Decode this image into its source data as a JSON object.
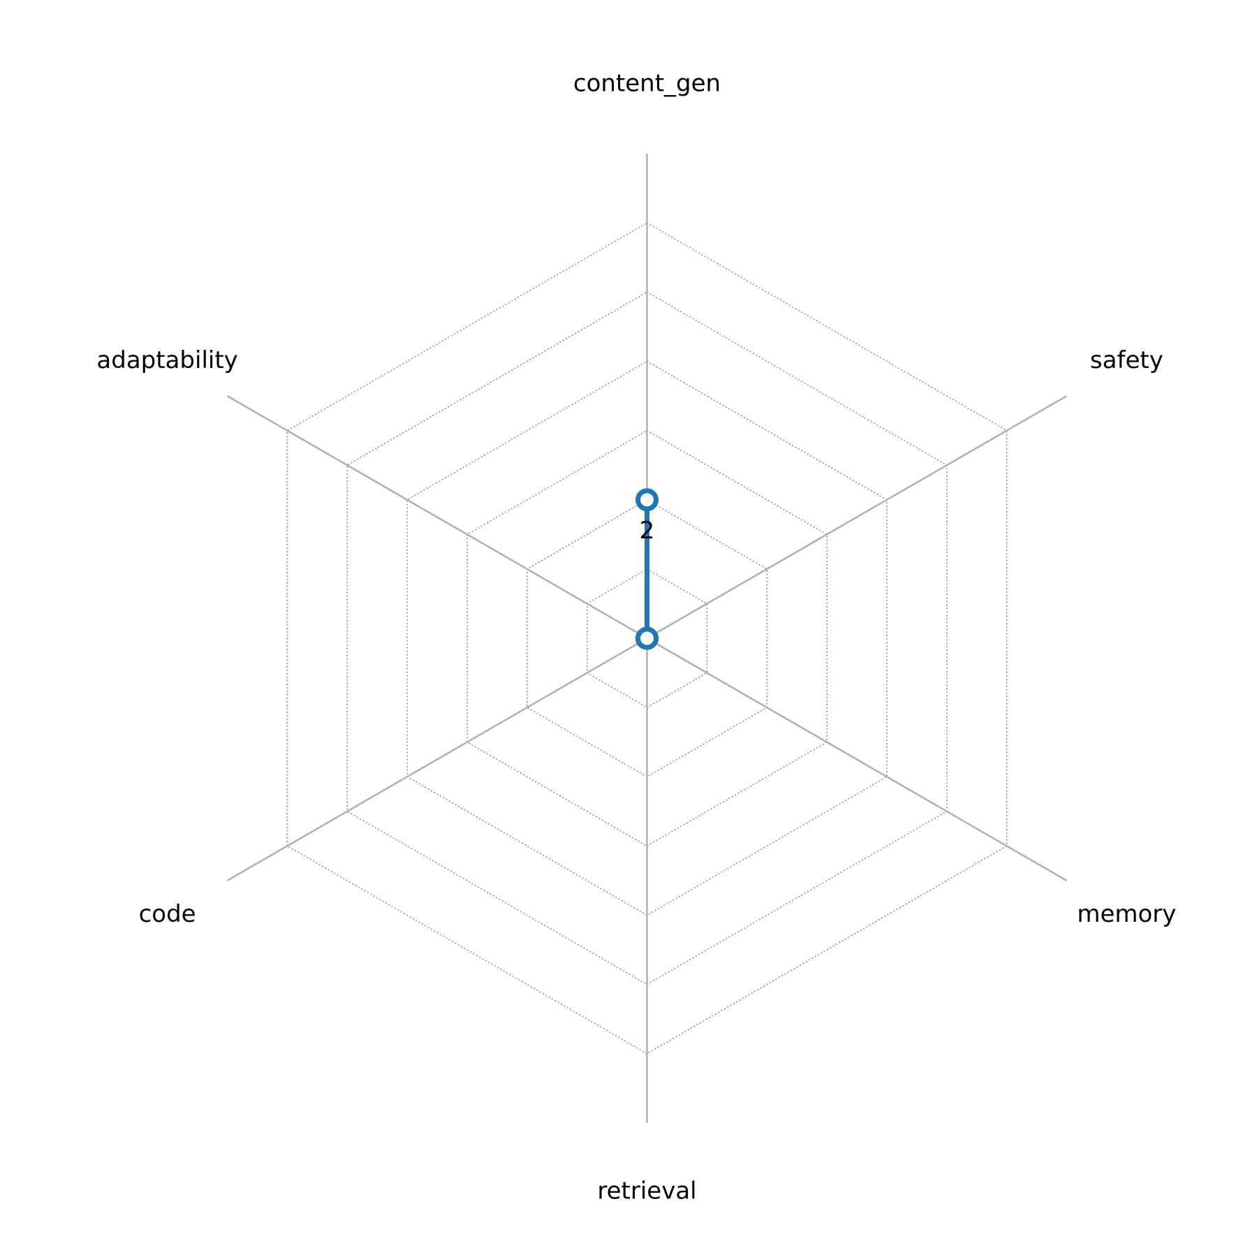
{
  "chart_data": {
    "type": "radar",
    "categories": [
      "content_gen",
      "safety",
      "memory",
      "retrieval",
      "code",
      "adaptability"
    ],
    "series": [
      {
        "color": "#1f77b4",
        "values": [
          2,
          0,
          0,
          0,
          0,
          0
        ]
      }
    ],
    "rlim": [
      0,
      7
    ],
    "rticks": [
      1,
      2,
      3,
      4,
      5,
      6
    ],
    "grid": true
  }
}
